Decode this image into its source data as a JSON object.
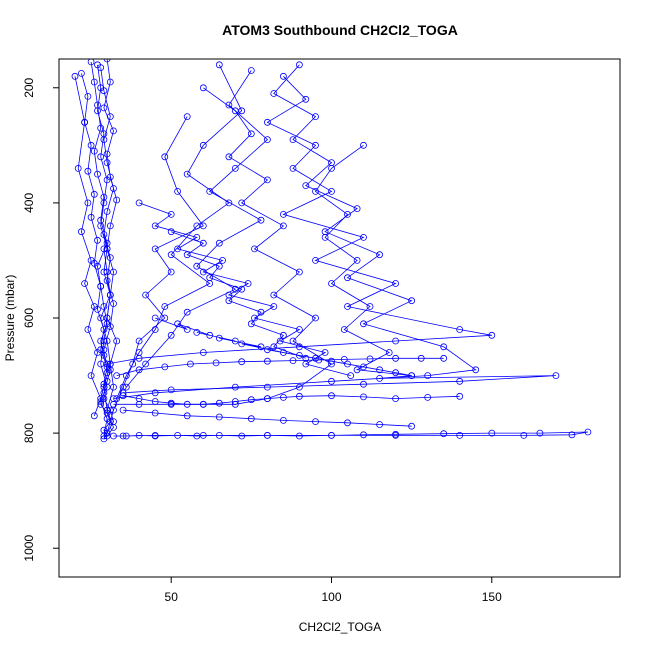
{
  "chart_data": {
    "type": "line",
    "title": "ATOM3 Southbound CH2Cl2_TOGA",
    "xlabel": "CH2Cl2_TOGA",
    "ylabel": "Pressure (mbar)",
    "xlim": [
      15,
      190
    ],
    "ylim": [
      1050,
      150
    ],
    "y_reversed": true,
    "xticks": [
      50,
      100,
      150
    ],
    "yticks": [
      200,
      400,
      600,
      800,
      1000
    ],
    "grid": false,
    "marker": "open-circle",
    "color": "#0000ff",
    "series": [
      {
        "x": [
          25,
          26,
          27,
          28,
          26,
          27,
          29,
          28,
          30,
          27,
          28,
          29,
          30,
          28,
          29,
          31,
          30,
          29,
          28,
          30,
          31,
          29,
          30,
          32,
          30,
          29,
          31,
          30,
          28,
          31,
          30,
          29
        ],
        "y": [
          155,
          190,
          230,
          270,
          310,
          350,
          390,
          430,
          470,
          510,
          545,
          580,
          610,
          640,
          665,
          690,
          710,
          730,
          750,
          765,
          780,
          795,
          805,
          790,
          760,
          720,
          680,
          640,
          600,
          560,
          520,
          480
        ]
      },
      {
        "x": [
          27,
          28,
          27,
          29,
          28,
          30,
          29,
          28,
          30,
          29,
          31,
          30,
          29,
          28,
          30,
          29,
          31,
          32,
          30,
          29
        ],
        "y": [
          160,
          200,
          240,
          280,
          320,
          360,
          400,
          440,
          480,
          520,
          560,
          600,
          640,
          680,
          720,
          740,
          760,
          780,
          800,
          810
        ]
      },
      {
        "x": [
          22,
          24,
          23,
          25,
          24,
          26,
          25,
          27,
          26,
          28,
          27,
          29,
          28,
          30,
          29,
          28,
          30,
          29
        ],
        "y": [
          175,
          215,
          260,
          300,
          345,
          385,
          425,
          465,
          505,
          545,
          585,
          620,
          655,
          685,
          715,
          745,
          775,
          805
        ]
      },
      {
        "x": [
          30,
          31,
          29,
          32,
          30,
          31,
          33,
          31,
          30,
          32,
          31,
          30,
          33,
          31,
          32,
          30
        ],
        "y": [
          150,
          190,
          235,
          275,
          315,
          355,
          395,
          440,
          480,
          520,
          560,
          600,
          640,
          680,
          720,
          760
        ]
      },
      {
        "x": [
          20,
          23,
          21,
          24,
          22,
          25,
          23,
          26,
          24,
          27,
          25,
          28,
          26
        ],
        "y": [
          180,
          260,
          340,
          400,
          450,
          500,
          540,
          580,
          620,
          660,
          700,
          740,
          770
        ]
      },
      {
        "x": [
          28,
          29,
          31,
          29,
          30,
          32,
          30,
          29,
          31,
          30,
          32,
          31,
          29,
          30
        ],
        "y": [
          165,
          205,
          250,
          290,
          330,
          375,
          415,
          455,
          495,
          535,
          575,
          615,
          655,
          695
        ]
      },
      {
        "x": [
          55,
          48,
          52,
          60,
          45,
          50,
          42,
          48,
          40,
          38,
          35,
          32,
          30
        ],
        "y": [
          250,
          320,
          380,
          440,
          480,
          520,
          560,
          600,
          640,
          680,
          720,
          760,
          800
        ]
      },
      {
        "x": [
          65,
          72,
          60,
          55,
          68,
          58,
          50,
          62,
          48,
          45,
          40,
          36,
          33
        ],
        "y": [
          160,
          240,
          300,
          350,
          400,
          440,
          490,
          540,
          580,
          620,
          660,
          700,
          740
        ]
      },
      {
        "x": [
          75,
          68,
          80,
          70,
          62,
          78,
          65,
          58,
          70,
          55,
          50,
          42,
          36
        ],
        "y": [
          170,
          230,
          290,
          340,
          380,
          430,
          470,
          510,
          550,
          590,
          630,
          680,
          720
        ]
      },
      {
        "x": [
          85,
          92,
          80,
          95,
          88,
          100,
          85,
          110,
          95,
          120,
          105,
          140,
          150,
          120,
          90,
          60,
          40,
          30
        ],
        "y": [
          180,
          220,
          260,
          300,
          340,
          380,
          420,
          460,
          500,
          540,
          580,
          620,
          630,
          640,
          650,
          660,
          670,
          680
        ]
      },
      {
        "x": [
          90,
          82,
          95,
          88,
          100,
          92,
          108,
          98,
          115,
          105,
          125,
          110,
          135,
          145,
          130,
          100,
          70,
          45,
          32
        ],
        "y": [
          160,
          210,
          250,
          290,
          330,
          370,
          410,
          450,
          490,
          530,
          570,
          610,
          650,
          690,
          700,
          710,
          720,
          730,
          740
        ]
      },
      {
        "x": [
          110,
          100,
          95,
          105,
          98,
          108,
          100,
          112,
          104,
          118,
          108,
          125,
          115,
          170,
          140,
          110,
          80,
          50,
          35
        ],
        "y": [
          300,
          340,
          380,
          420,
          460,
          500,
          540,
          580,
          620,
          660,
          690,
          700,
          705,
          700,
          710,
          715,
          720,
          725,
          730
        ]
      },
      {
        "x": [
          60,
          70,
          75,
          68,
          80,
          72,
          85,
          76,
          90,
          82,
          95,
          88,
          100,
          90,
          80,
          70,
          60,
          50,
          40,
          32
        ],
        "y": [
          200,
          240,
          280,
          320,
          360,
          400,
          440,
          480,
          520,
          560,
          600,
          640,
          680,
          720,
          740,
          750,
          750,
          750,
          750,
          750
        ]
      },
      {
        "x": [
          35,
          40,
          45,
          50,
          55,
          60,
          65,
          70,
          75,
          80,
          85,
          90,
          100,
          110,
          120,
          130,
          140
        ],
        "y": [
          735,
          740,
          745,
          748,
          750,
          750,
          748,
          745,
          742,
          740,
          738,
          736,
          735,
          737,
          740,
          738,
          736
        ]
      },
      {
        "x": [
          32,
          36,
          40,
          45,
          52,
          58,
          65,
          72,
          80,
          90,
          100,
          110,
          120,
          135,
          150,
          165,
          180,
          175,
          160,
          140,
          120,
          100,
          80,
          60,
          45,
          35
        ],
        "y": [
          805,
          805,
          804,
          805,
          804,
          805,
          804,
          805,
          804,
          805,
          804,
          803,
          802,
          801,
          800,
          800,
          798,
          803,
          804,
          804,
          804,
          804,
          804,
          804,
          804,
          805
        ]
      },
      {
        "x": [
          45,
          55,
          52,
          62,
          58,
          70,
          65,
          78,
          72,
          85,
          80,
          95,
          90,
          105,
          100,
          115,
          110,
          125,
          120
        ],
        "y": [
          600,
          620,
          610,
          630,
          625,
          640,
          635,
          650,
          645,
          660,
          655,
          670,
          665,
          680,
          675,
          690,
          685,
          700,
          695
        ]
      },
      {
        "x": [
          33,
          40,
          48,
          56,
          64,
          72,
          80,
          88,
          96,
          104,
          112,
          120,
          128,
          135
        ],
        "y": [
          700,
          690,
          685,
          680,
          678,
          676,
          675,
          674,
          673,
          672,
          671,
          670,
          670,
          670
        ]
      },
      {
        "x": [
          40,
          50,
          45,
          58,
          52,
          66,
          60,
          74,
          68,
          82,
          76,
          90,
          84,
          98,
          92,
          106
        ],
        "y": [
          400,
          420,
          440,
          460,
          480,
          500,
          520,
          540,
          560,
          580,
          600,
          620,
          640,
          660,
          680,
          700
        ]
      },
      {
        "x": [
          50,
          60,
          55,
          65,
          62,
          72,
          68,
          78,
          75,
          85,
          82,
          92
        ],
        "y": [
          450,
          470,
          490,
          510,
          530,
          550,
          570,
          590,
          610,
          630,
          650,
          670
        ]
      },
      {
        "x": [
          35,
          45,
          55,
          65,
          75,
          85,
          95,
          105,
          115,
          125
        ],
        "y": [
          760,
          765,
          770,
          772,
          775,
          778,
          780,
          782,
          785,
          788
        ]
      }
    ]
  }
}
